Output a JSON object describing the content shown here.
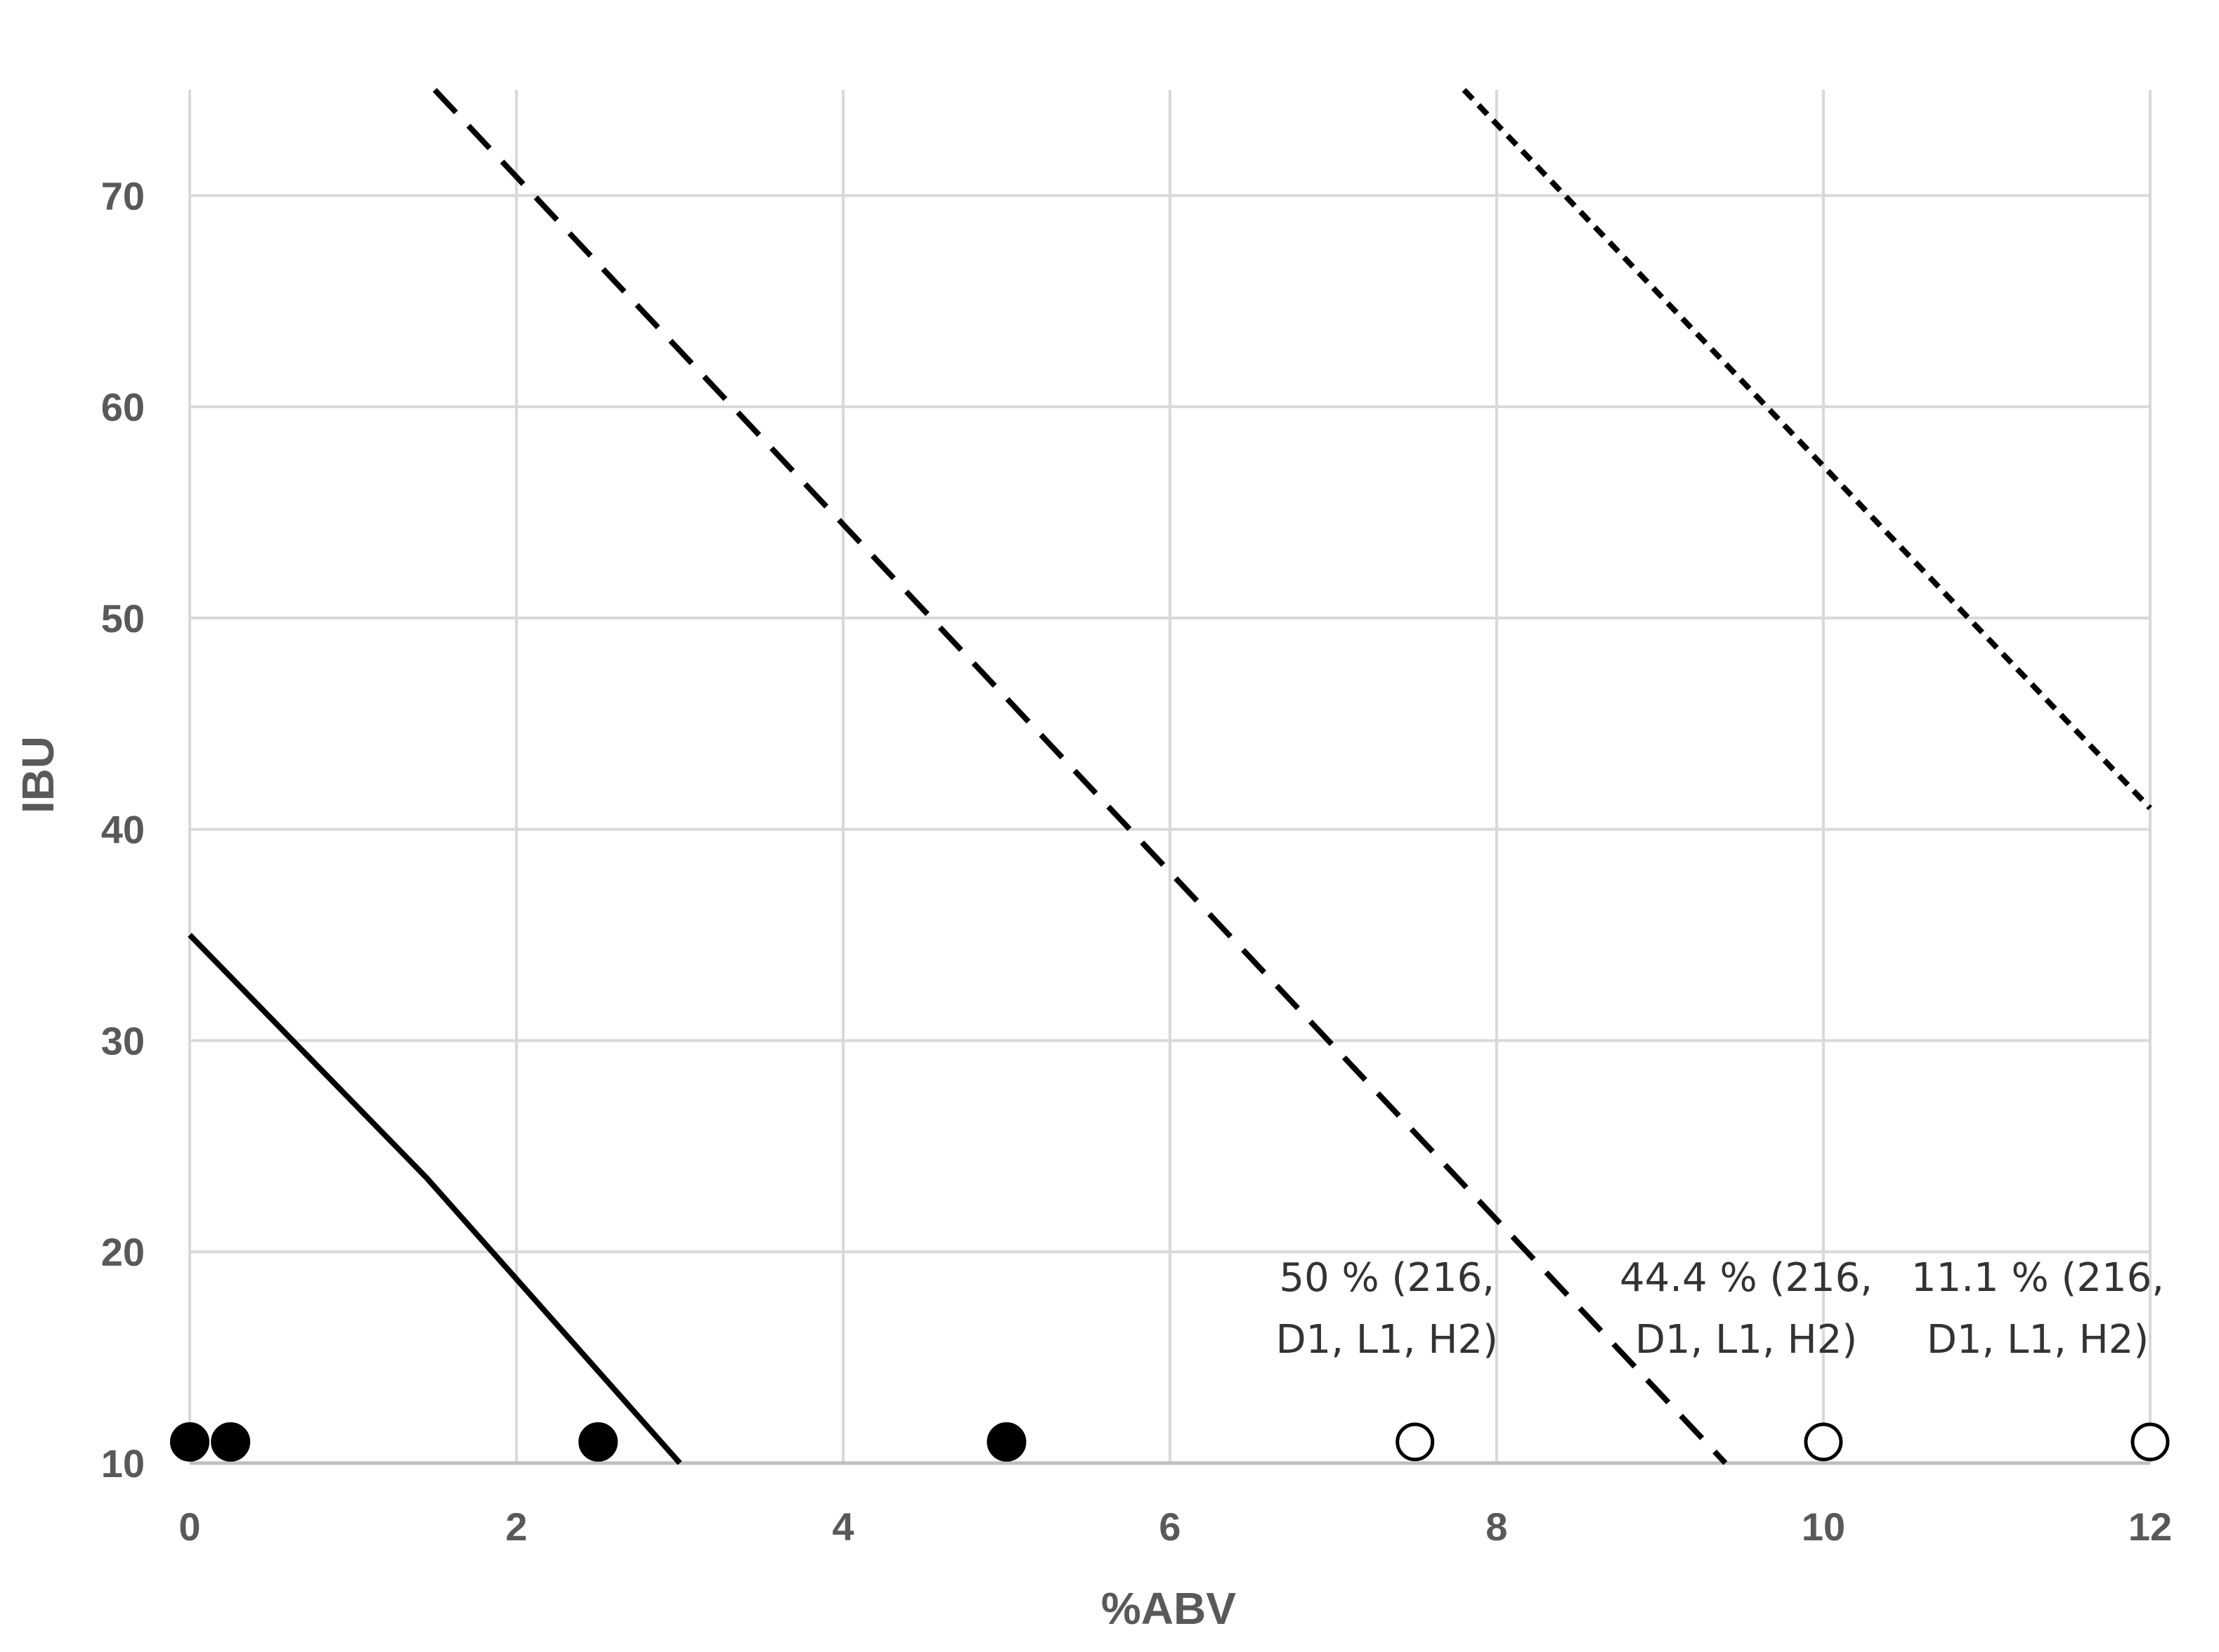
{
  "chart_data": {
    "type": "scatter",
    "title": "",
    "xlabel": "%ABV",
    "ylabel": "IBU",
    "xlim": [
      0,
      12
    ],
    "ylim": [
      10,
      75
    ],
    "x_ticks": [
      "0",
      "2",
      "4",
      "6",
      "8",
      "10",
      "12"
    ],
    "y_ticks": [
      "10",
      "20",
      "30",
      "40",
      "50",
      "60",
      "70"
    ],
    "grid": true,
    "series": [
      {
        "marker": "filled-circle",
        "points": [
          [
            0,
            11
          ],
          [
            0.25,
            11
          ],
          [
            2.5,
            11
          ],
          [
            5,
            11
          ]
        ]
      },
      {
        "marker": "open-circle",
        "points": [
          [
            7.5,
            11
          ],
          [
            10,
            11
          ],
          [
            12,
            11
          ]
        ]
      }
    ],
    "lines": [
      {
        "style": "solid",
        "points": [
          [
            0,
            35
          ],
          [
            1.45,
            23.5
          ],
          [
            3.0,
            10
          ]
        ]
      },
      {
        "style": "dashed",
        "points": [
          [
            1.5,
            75
          ],
          [
            9.4,
            10
          ]
        ]
      },
      {
        "style": "dotted",
        "points": [
          [
            7.8,
            75
          ],
          [
            12,
            41
          ]
        ]
      }
    ],
    "annotations": [
      {
        "x": 7.5,
        "line1": "50 % (216,",
        "line2": "D1, L1, H2)"
      },
      {
        "x": 10,
        "line1": "44.4 % (216,",
        "line2": "D1, L1, H2)"
      },
      {
        "x": 12,
        "line1": "11.1 % (216,",
        "line2": "D1, L1, H2)"
      }
    ]
  }
}
